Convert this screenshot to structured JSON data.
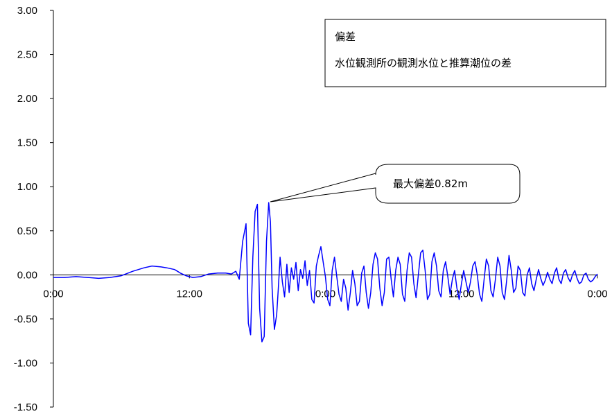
{
  "chart_data": {
    "type": "line",
    "x_ticks": [
      "0:00",
      "12:00",
      "0:00",
      "12:00",
      "0:00"
    ],
    "y_ticks": [
      "3.00",
      "2.50",
      "2.00",
      "1.50",
      "1.00",
      "0.50",
      "0.00",
      "-0.50",
      "-1.00",
      "-1.50"
    ],
    "ylim": [
      -1.5,
      3.0
    ],
    "xlim_hours": [
      0,
      48
    ],
    "grid": false,
    "series": [
      {
        "color": "#0000ff",
        "points": [
          [
            0,
            -0.03
          ],
          [
            1,
            -0.03
          ],
          [
            2,
            -0.02
          ],
          [
            3,
            -0.03
          ],
          [
            4,
            -0.04
          ],
          [
            5,
            -0.03
          ],
          [
            6,
            -0.01
          ],
          [
            7,
            0.04
          ],
          [
            8,
            0.08
          ],
          [
            8.7,
            0.1
          ],
          [
            9.5,
            0.09
          ],
          [
            10,
            0.08
          ],
          [
            10.7,
            0.06
          ],
          [
            11.2,
            0.02
          ],
          [
            11.7,
            -0.01
          ],
          [
            12.3,
            -0.03
          ],
          [
            13,
            -0.02
          ],
          [
            13.7,
            0.01
          ],
          [
            14.5,
            0.02
          ],
          [
            15.2,
            0.02
          ],
          [
            15.7,
            0.01
          ],
          [
            16.1,
            0.04
          ],
          [
            16.4,
            -0.05
          ],
          [
            16.7,
            0.38
          ],
          [
            17.0,
            0.58
          ],
          [
            17.2,
            -0.55
          ],
          [
            17.4,
            -0.68
          ],
          [
            17.6,
            0.2
          ],
          [
            17.8,
            0.72
          ],
          [
            18.0,
            0.8
          ],
          [
            18.2,
            -0.38
          ],
          [
            18.4,
            -0.76
          ],
          [
            18.6,
            -0.7
          ],
          [
            18.8,
            0.38
          ],
          [
            19.0,
            0.82
          ],
          [
            19.15,
            0.6
          ],
          [
            19.3,
            -0.15
          ],
          [
            19.5,
            -0.62
          ],
          [
            19.7,
            -0.45
          ],
          [
            19.85,
            -0.15
          ],
          [
            20.0,
            0.2
          ],
          [
            20.2,
            -0.08
          ],
          [
            20.4,
            -0.25
          ],
          [
            20.6,
            0.12
          ],
          [
            20.8,
            -0.2
          ],
          [
            21.0,
            0.08
          ],
          [
            21.2,
            -0.05
          ],
          [
            21.4,
            0.14
          ],
          [
            21.6,
            -0.18
          ],
          [
            21.8,
            0.06
          ],
          [
            22.0,
            -0.04
          ],
          [
            22.2,
            0.16
          ],
          [
            22.4,
            -0.12
          ],
          [
            22.6,
            0.05
          ],
          [
            22.8,
            -0.28
          ],
          [
            23.0,
            -0.32
          ],
          [
            23.2,
            0.1
          ],
          [
            23.4,
            0.22
          ],
          [
            23.6,
            0.32
          ],
          [
            23.8,
            0.15
          ],
          [
            24.0,
            -0.02
          ],
          [
            24.2,
            -0.28
          ],
          [
            24.4,
            -0.35
          ],
          [
            24.6,
            0.05
          ],
          [
            24.8,
            0.2
          ],
          [
            25.0,
            -0.02
          ],
          [
            25.2,
            -0.22
          ],
          [
            25.4,
            -0.3
          ],
          [
            25.6,
            -0.05
          ],
          [
            25.8,
            -0.15
          ],
          [
            26.0,
            -0.4
          ],
          [
            26.2,
            -0.2
          ],
          [
            26.4,
            0.05
          ],
          [
            26.6,
            -0.1
          ],
          [
            26.8,
            -0.35
          ],
          [
            27.0,
            -0.3
          ],
          [
            27.2,
            0.02
          ],
          [
            27.4,
            0.1
          ],
          [
            27.6,
            -0.2
          ],
          [
            27.8,
            -0.38
          ],
          [
            28.0,
            -0.2
          ],
          [
            28.2,
            0.12
          ],
          [
            28.4,
            0.25
          ],
          [
            28.6,
            0.18
          ],
          [
            28.8,
            -0.15
          ],
          [
            29.0,
            -0.35
          ],
          [
            29.2,
            -0.2
          ],
          [
            29.4,
            0.18
          ],
          [
            29.6,
            0.2
          ],
          [
            29.8,
            -0.05
          ],
          [
            30.0,
            -0.25
          ],
          [
            30.2,
            0.05
          ],
          [
            30.4,
            0.2
          ],
          [
            30.6,
            0.12
          ],
          [
            30.8,
            -0.22
          ],
          [
            31.0,
            -0.3
          ],
          [
            31.2,
            0.05
          ],
          [
            31.4,
            0.25
          ],
          [
            31.6,
            0.2
          ],
          [
            31.8,
            -0.1
          ],
          [
            32.0,
            -0.26
          ],
          [
            32.2,
            0.0
          ],
          [
            32.4,
            0.25
          ],
          [
            32.6,
            0.28
          ],
          [
            32.8,
            0.05
          ],
          [
            33.0,
            -0.28
          ],
          [
            33.2,
            -0.22
          ],
          [
            33.4,
            0.15
          ],
          [
            33.6,
            0.25
          ],
          [
            33.8,
            0.1
          ],
          [
            34.0,
            -0.18
          ],
          [
            34.2,
            -0.25
          ],
          [
            34.4,
            0.05
          ],
          [
            34.6,
            0.15
          ],
          [
            34.8,
            -0.02
          ],
          [
            35.0,
            -0.22
          ],
          [
            35.2,
            -0.05
          ],
          [
            35.4,
            0.05
          ],
          [
            35.6,
            -0.15
          ],
          [
            35.8,
            -0.28
          ],
          [
            36.0,
            -0.1
          ],
          [
            36.2,
            0.05
          ],
          [
            36.4,
            -0.08
          ],
          [
            36.6,
            -0.2
          ],
          [
            36.8,
            -0.08
          ],
          [
            37.0,
            0.1
          ],
          [
            37.2,
            0.15
          ],
          [
            37.4,
            0.0
          ],
          [
            37.6,
            -0.22
          ],
          [
            37.8,
            -0.3
          ],
          [
            38.0,
            -0.05
          ],
          [
            38.2,
            0.18
          ],
          [
            38.4,
            0.1
          ],
          [
            38.6,
            -0.18
          ],
          [
            38.8,
            -0.25
          ],
          [
            39.0,
            -0.05
          ],
          [
            39.2,
            0.2
          ],
          [
            39.4,
            0.1
          ],
          [
            39.6,
            -0.2
          ],
          [
            39.8,
            -0.28
          ],
          [
            40.0,
            -0.05
          ],
          [
            40.2,
            0.22
          ],
          [
            40.4,
            0.05
          ],
          [
            40.6,
            -0.2
          ],
          [
            40.8,
            -0.15
          ],
          [
            41.0,
            0.1
          ],
          [
            41.2,
            0.05
          ],
          [
            41.4,
            -0.2
          ],
          [
            41.6,
            -0.24
          ],
          [
            41.8,
            0.0
          ],
          [
            42.0,
            0.08
          ],
          [
            42.2,
            -0.1
          ],
          [
            42.4,
            -0.18
          ],
          [
            42.6,
            -0.05
          ],
          [
            42.8,
            0.06
          ],
          [
            43.0,
            -0.04
          ],
          [
            43.2,
            -0.12
          ],
          [
            43.4,
            -0.06
          ],
          [
            43.6,
            0.03
          ],
          [
            43.8,
            -0.05
          ],
          [
            44.0,
            -0.1
          ],
          [
            44.2,
            0.02
          ],
          [
            44.4,
            0.08
          ],
          [
            44.6,
            -0.05
          ],
          [
            44.8,
            -0.1
          ],
          [
            45.0,
            0.02
          ],
          [
            45.2,
            0.06
          ],
          [
            45.4,
            -0.03
          ],
          [
            45.6,
            -0.08
          ],
          [
            45.8,
            0.0
          ],
          [
            46.0,
            0.05
          ],
          [
            46.2,
            -0.04
          ],
          [
            46.4,
            -0.1
          ],
          [
            46.6,
            -0.08
          ],
          [
            46.8,
            0.0
          ],
          [
            47.0,
            0.02
          ],
          [
            47.2,
            -0.05
          ],
          [
            47.4,
            -0.08
          ],
          [
            47.6,
            -0.06
          ],
          [
            47.8,
            -0.02
          ],
          [
            48.0,
            0.01
          ]
        ]
      }
    ],
    "legend": {
      "title": "偏差",
      "description": "水位観測所の観測水位と推算潮位の差",
      "placement": "top-right"
    },
    "annotations": [
      {
        "text": "最大偏差0.82m",
        "x": 19.0,
        "y": 0.82
      }
    ]
  }
}
